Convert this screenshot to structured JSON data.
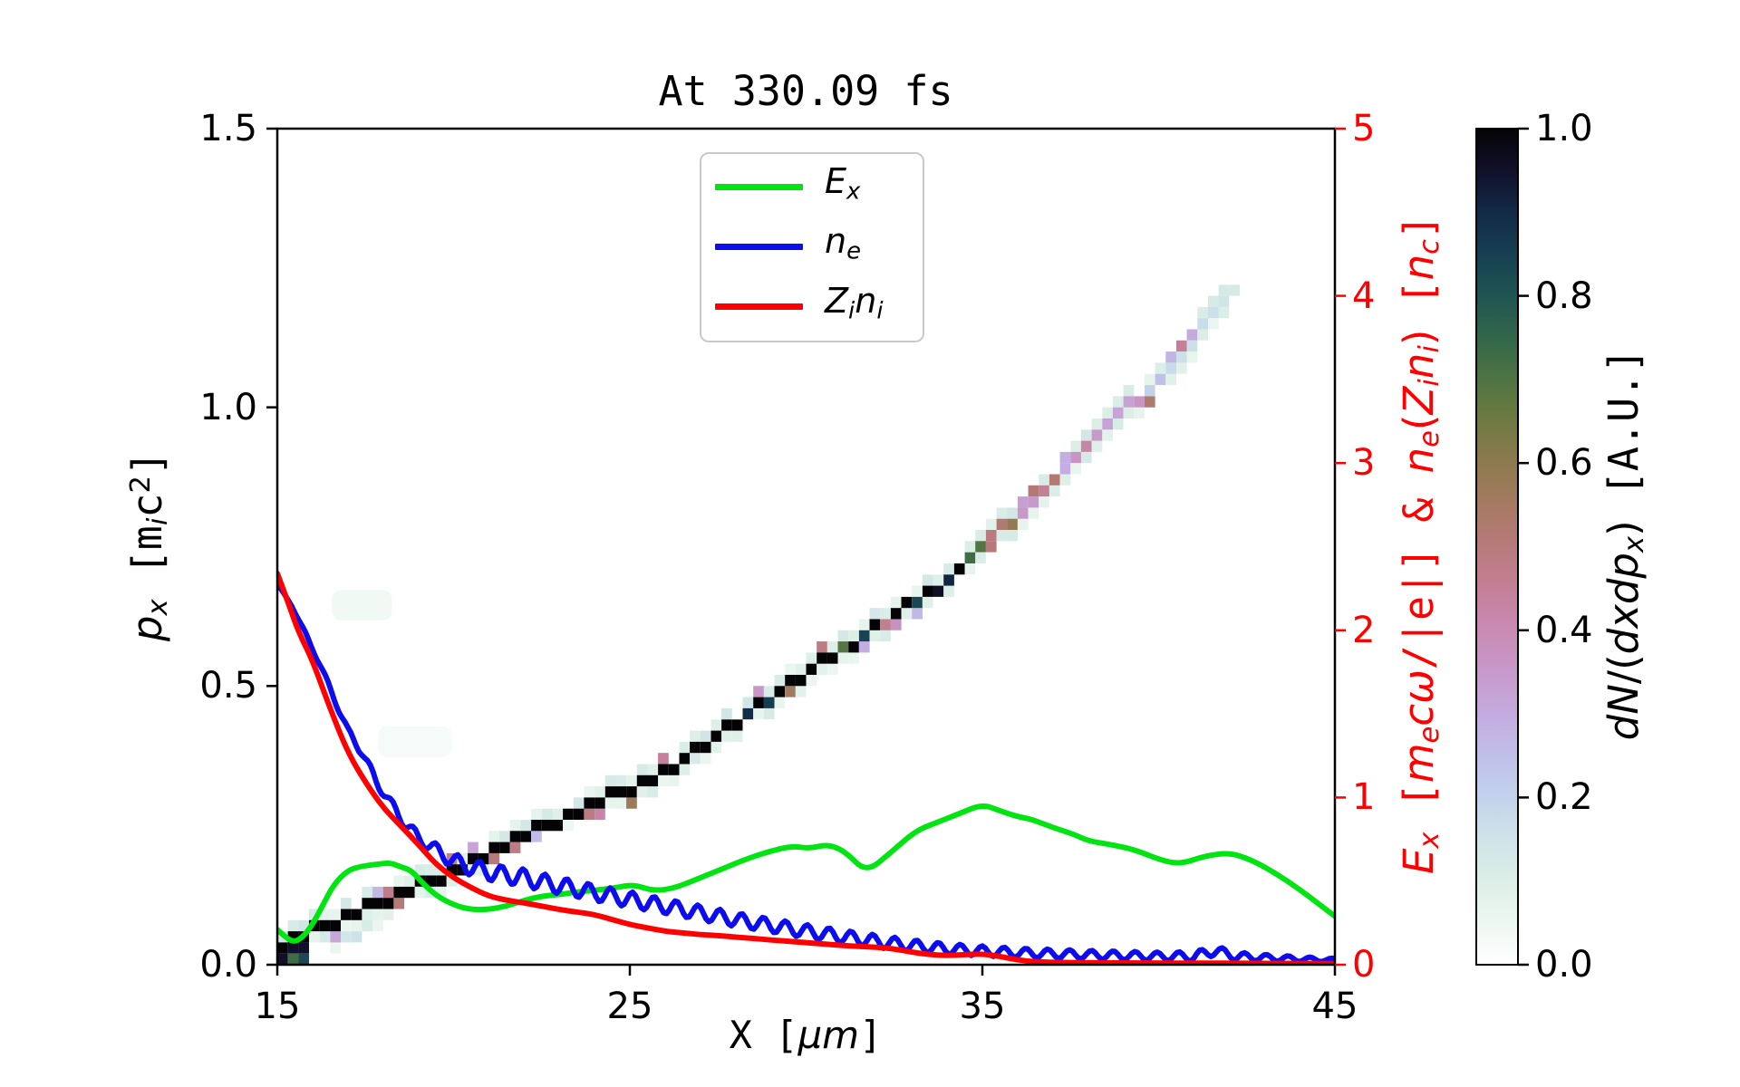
{
  "title": "At 330.09 fs",
  "axes": {
    "x": {
      "label_segments": [
        {
          "t": "X [",
          "s": "m"
        },
        {
          "t": "μm",
          "s": "i"
        },
        {
          "t": "]",
          "s": "m"
        }
      ],
      "tick_labels": [
        "15",
        "25",
        "35",
        "45"
      ],
      "tick_values": [
        15,
        25,
        35,
        45
      ],
      "range": [
        15,
        45
      ]
    },
    "left": {
      "label_segments": [
        {
          "t": "p",
          "s": "i"
        },
        {
          "t": "x",
          "s": "sub"
        },
        {
          "t": " [m",
          "s": "m"
        },
        {
          "t": "i",
          "s": "sub"
        },
        {
          "t": "c",
          "s": "m"
        },
        {
          "t": "2",
          "s": "sup"
        },
        {
          "t": "]",
          "s": "m"
        }
      ],
      "tick_labels": [
        "0.0",
        "0.5",
        "1.0",
        "1.5"
      ],
      "tick_values": [
        0.0,
        0.5,
        1.0,
        1.5
      ],
      "range": [
        0,
        1.5
      ]
    },
    "right": {
      "color": "#ff0000",
      "label_segments": [
        {
          "t": "E",
          "s": "i"
        },
        {
          "t": "x",
          "s": "sub"
        },
        {
          "t": " [",
          "s": "m"
        },
        {
          "t": "m",
          "s": "i"
        },
        {
          "t": "e",
          "s": "sub"
        },
        {
          "t": "c",
          "s": "i"
        },
        {
          "t": "ω",
          "s": "i"
        },
        {
          "t": "/|e|]",
          "s": "m"
        },
        {
          "t": " & ",
          "s": "m"
        },
        {
          "t": "n",
          "s": "i"
        },
        {
          "t": "e",
          "s": "sub"
        },
        {
          "t": "(",
          "s": "r"
        },
        {
          "t": "Z",
          "s": "i"
        },
        {
          "t": "i",
          "s": "sub"
        },
        {
          "t": "n",
          "s": "i"
        },
        {
          "t": "i",
          "s": "sub"
        },
        {
          "t": ")",
          "s": "r"
        },
        {
          "t": " [",
          "s": "m"
        },
        {
          "t": "n",
          "s": "i"
        },
        {
          "t": "c",
          "s": "sub"
        },
        {
          "t": "]",
          "s": "m"
        }
      ],
      "tick_labels": [
        "0",
        "1",
        "2",
        "3",
        "4",
        "5"
      ],
      "tick_values": [
        0,
        1,
        2,
        3,
        4,
        5
      ],
      "range": [
        0,
        5
      ]
    }
  },
  "legend": {
    "items": [
      {
        "name": "Ex",
        "color": "#00e412",
        "segments": [
          {
            "t": "E",
            "s": "i"
          },
          {
            "t": "x",
            "s": "sub"
          }
        ]
      },
      {
        "name": "ne",
        "color": "#0c0cee",
        "segments": [
          {
            "t": "n",
            "s": "i"
          },
          {
            "t": "e",
            "s": "sub"
          }
        ]
      },
      {
        "name": "Zini",
        "color": "#ff0000",
        "segments": [
          {
            "t": "Z",
            "s": "i"
          },
          {
            "t": "i",
            "s": "sub"
          },
          {
            "t": "n",
            "s": "i"
          },
          {
            "t": "i",
            "s": "sub"
          }
        ]
      }
    ]
  },
  "colorbar": {
    "label_segments": [
      {
        "t": "d",
        "s": "i"
      },
      {
        "t": "N",
        "s": "i"
      },
      {
        "t": "/(",
        "s": "r"
      },
      {
        "t": "d",
        "s": "i"
      },
      {
        "t": "x",
        "s": "i"
      },
      {
        "t": "d",
        "s": "i"
      },
      {
        "t": "p",
        "s": "i"
      },
      {
        "t": "x",
        "s": "sub"
      },
      {
        "t": ")",
        "s": "r"
      },
      {
        "t": " [A.U.]",
        "s": "m"
      }
    ],
    "tick_labels": [
      "0.0",
      "0.2",
      "0.4",
      "0.6",
      "0.8",
      "1.0"
    ],
    "tick_values": [
      0.0,
      0.2,
      0.4,
      0.6,
      0.8,
      1.0
    ],
    "range": [
      0,
      1
    ],
    "palette": [
      [
        0.0,
        "#ffffff"
      ],
      [
        0.05,
        "#edf7f1"
      ],
      [
        0.1,
        "#dcefe6"
      ],
      [
        0.15,
        "#cfe4e8"
      ],
      [
        0.2,
        "#c3d2ec"
      ],
      [
        0.25,
        "#c0bfe9"
      ],
      [
        0.3,
        "#c4abdf"
      ],
      [
        0.35,
        "#c899cb"
      ],
      [
        0.4,
        "#c98bb4"
      ],
      [
        0.45,
        "#c48098"
      ],
      [
        0.5,
        "#b87a7c"
      ],
      [
        0.55,
        "#a67a62"
      ],
      [
        0.6,
        "#8d7a4e"
      ],
      [
        0.65,
        "#6f7a42"
      ],
      [
        0.7,
        "#4f7442"
      ],
      [
        0.75,
        "#32664a"
      ],
      [
        0.8,
        "#205552"
      ],
      [
        0.85,
        "#173f52"
      ],
      [
        0.9,
        "#122a46"
      ],
      [
        0.95,
        "#11102a"
      ],
      [
        1.0,
        "#040406"
      ]
    ]
  },
  "chart_data": {
    "type": "composite",
    "title": "At 330.09 fs",
    "xlabel": "X [um]",
    "x_range": [
      15,
      45
    ],
    "y_left": {
      "label": "p_x [m_i c^2]",
      "range": [
        0,
        1.5
      ]
    },
    "y_right": {
      "label": "E_x [m_e c w/|e|] & n_e(Z_i n_i) [n_c]",
      "range": [
        0,
        5
      ]
    },
    "series": [
      {
        "name": "E_x",
        "type": "line",
        "axis": "right",
        "color": "#00e412",
        "points": [
          [
            15,
            0.21
          ],
          [
            15.2,
            0.17
          ],
          [
            15.45,
            0.135
          ],
          [
            15.7,
            0.16
          ],
          [
            16.0,
            0.24
          ],
          [
            16.3,
            0.36
          ],
          [
            16.6,
            0.48
          ],
          [
            17.0,
            0.565
          ],
          [
            17.4,
            0.59
          ],
          [
            17.8,
            0.6
          ],
          [
            18.2,
            0.61
          ],
          [
            18.5,
            0.585
          ],
          [
            18.8,
            0.565
          ],
          [
            19.2,
            0.47
          ],
          [
            19.6,
            0.4
          ],
          [
            20.1,
            0.35
          ],
          [
            20.5,
            0.33
          ],
          [
            21.0,
            0.33
          ],
          [
            21.5,
            0.35
          ],
          [
            22.0,
            0.385
          ],
          [
            22.5,
            0.41
          ],
          [
            23.0,
            0.42
          ],
          [
            23.5,
            0.435
          ],
          [
            24.0,
            0.445
          ],
          [
            24.6,
            0.46
          ],
          [
            25.1,
            0.48
          ],
          [
            25.7,
            0.44
          ],
          [
            26.3,
            0.46
          ],
          [
            27.0,
            0.52
          ],
          [
            27.7,
            0.58
          ],
          [
            28.4,
            0.64
          ],
          [
            29.0,
            0.68
          ],
          [
            29.6,
            0.71
          ],
          [
            30.1,
            0.695
          ],
          [
            30.6,
            0.72
          ],
          [
            31.1,
            0.68
          ],
          [
            31.7,
            0.55
          ],
          [
            32.4,
            0.67
          ],
          [
            33.1,
            0.8
          ],
          [
            33.7,
            0.85
          ],
          [
            34.3,
            0.9
          ],
          [
            35.0,
            0.96
          ],
          [
            35.5,
            0.92
          ],
          [
            36.0,
            0.885
          ],
          [
            36.4,
            0.87
          ],
          [
            37.0,
            0.82
          ],
          [
            37.6,
            0.78
          ],
          [
            38.0,
            0.74
          ],
          [
            38.6,
            0.72
          ],
          [
            39.3,
            0.69
          ],
          [
            40.0,
            0.63
          ],
          [
            40.6,
            0.6
          ],
          [
            41.3,
            0.65
          ],
          [
            42.0,
            0.67
          ],
          [
            42.6,
            0.63
          ],
          [
            43.3,
            0.55
          ],
          [
            44.0,
            0.45
          ],
          [
            44.5,
            0.37
          ],
          [
            45.0,
            0.29
          ]
        ]
      },
      {
        "name": "n_e",
        "type": "line",
        "axis": "right",
        "color": "#0c0cee",
        "osc_period": 0.62,
        "midline": [
          [
            15,
            2.28
          ],
          [
            15.4,
            2.15
          ],
          [
            15.8,
            1.98
          ],
          [
            16.2,
            1.8
          ],
          [
            16.6,
            1.6
          ],
          [
            17.0,
            1.4
          ],
          [
            17.4,
            1.27
          ],
          [
            17.8,
            1.1
          ],
          [
            18.2,
            0.97
          ],
          [
            18.6,
            0.85
          ],
          [
            19.0,
            0.76
          ],
          [
            19.4,
            0.7
          ],
          [
            20.0,
            0.62
          ],
          [
            20.6,
            0.575
          ],
          [
            21.2,
            0.545
          ],
          [
            22.0,
            0.52
          ],
          [
            22.6,
            0.49
          ],
          [
            23.2,
            0.465
          ],
          [
            24.0,
            0.43
          ],
          [
            25.0,
            0.39
          ],
          [
            26.0,
            0.35
          ],
          [
            27.0,
            0.31
          ],
          [
            28.0,
            0.27
          ],
          [
            29.0,
            0.235
          ],
          [
            30.0,
            0.2
          ],
          [
            31.0,
            0.17
          ],
          [
            32.0,
            0.14
          ],
          [
            33.0,
            0.115
          ],
          [
            34.0,
            0.095
          ],
          [
            35.0,
            0.082
          ],
          [
            36.0,
            0.072
          ],
          [
            37.0,
            0.065
          ],
          [
            38.0,
            0.06
          ],
          [
            39.0,
            0.055
          ],
          [
            40.0,
            0.05
          ],
          [
            41.0,
            0.05
          ],
          [
            41.6,
            0.085
          ],
          [
            42.2,
            0.05
          ],
          [
            43.0,
            0.042
          ],
          [
            44.0,
            0.034
          ],
          [
            45.0,
            0.028
          ]
        ],
        "osc_amp": [
          [
            15,
            0.0
          ],
          [
            16.2,
            0.013
          ],
          [
            17.5,
            0.025
          ],
          [
            19.0,
            0.035
          ],
          [
            20.5,
            0.05
          ],
          [
            22.0,
            0.052
          ],
          [
            24.0,
            0.048
          ],
          [
            26.0,
            0.045
          ],
          [
            28.0,
            0.042
          ],
          [
            30.0,
            0.04
          ],
          [
            32.0,
            0.038
          ],
          [
            34.0,
            0.032
          ],
          [
            36.0,
            0.028
          ],
          [
            38.0,
            0.026
          ],
          [
            40.0,
            0.025
          ],
          [
            41.5,
            0.03
          ],
          [
            43.0,
            0.02
          ],
          [
            44.0,
            0.015
          ],
          [
            45.0,
            0.01
          ]
        ]
      },
      {
        "name": "Z_i n_i",
        "type": "line",
        "axis": "right",
        "color": "#ff0000",
        "points": [
          [
            15,
            2.34
          ],
          [
            15.3,
            2.17
          ],
          [
            15.6,
            1.99
          ],
          [
            16.0,
            1.82
          ],
          [
            16.5,
            1.53
          ],
          [
            17.0,
            1.27
          ],
          [
            17.5,
            1.09
          ],
          [
            18.0,
            0.94
          ],
          [
            18.5,
            0.83
          ],
          [
            19.0,
            0.72
          ],
          [
            19.5,
            0.6
          ],
          [
            20.0,
            0.52
          ],
          [
            20.5,
            0.46
          ],
          [
            21.0,
            0.41
          ],
          [
            21.5,
            0.385
          ],
          [
            22.0,
            0.37
          ],
          [
            22.5,
            0.35
          ],
          [
            23.0,
            0.33
          ],
          [
            23.5,
            0.315
          ],
          [
            24.0,
            0.3
          ],
          [
            24.5,
            0.27
          ],
          [
            25.0,
            0.24
          ],
          [
            25.5,
            0.22
          ],
          [
            26.0,
            0.2
          ],
          [
            26.5,
            0.19
          ],
          [
            27.0,
            0.18
          ],
          [
            27.5,
            0.175
          ],
          [
            28.0,
            0.165
          ],
          [
            28.5,
            0.158
          ],
          [
            29.0,
            0.148
          ],
          [
            29.5,
            0.14
          ],
          [
            30.0,
            0.132
          ],
          [
            30.5,
            0.124
          ],
          [
            31.0,
            0.115
          ],
          [
            31.5,
            0.11
          ],
          [
            32.0,
            0.105
          ],
          [
            32.5,
            0.095
          ],
          [
            33.0,
            0.075
          ],
          [
            33.5,
            0.06
          ],
          [
            34.0,
            0.055
          ],
          [
            34.5,
            0.06
          ],
          [
            35.0,
            0.065
          ],
          [
            35.5,
            0.05
          ],
          [
            36.0,
            0.028
          ],
          [
            36.5,
            0.018
          ],
          [
            37.0,
            0.014
          ],
          [
            38.0,
            0.012
          ],
          [
            39.0,
            0.011
          ],
          [
            40.0,
            0.01
          ],
          [
            41.0,
            0.009
          ],
          [
            42.0,
            0.009
          ],
          [
            43.0,
            0.008
          ],
          [
            44.0,
            0.008
          ],
          [
            45.0,
            0.007
          ]
        ]
      },
      {
        "name": "dN/(dxdp_x) band",
        "type": "heatmap-band",
        "axis": "left",
        "bin_x": 0.3,
        "bin_p": 0.02,
        "x_start": 15,
        "x_end": 42.4,
        "path": [
          [
            15,
            0.02
          ],
          [
            17,
            0.08
          ],
          [
            19,
            0.13
          ],
          [
            21,
            0.19
          ],
          [
            23.6,
            0.27
          ],
          [
            26.2,
            0.34
          ],
          [
            29.0,
            0.47
          ],
          [
            31.5,
            0.575
          ],
          [
            33.9,
            0.675
          ],
          [
            36.4,
            0.82
          ],
          [
            38.8,
            0.97
          ],
          [
            40.6,
            1.08
          ],
          [
            42.3,
            1.22
          ]
        ],
        "density": [
          [
            15,
            1.0
          ],
          [
            33.5,
            1.0
          ],
          [
            34.4,
            0.85
          ],
          [
            35.5,
            0.52
          ],
          [
            37.0,
            0.42
          ],
          [
            38.5,
            0.34
          ],
          [
            40.0,
            0.26
          ],
          [
            41.0,
            0.19
          ],
          [
            42.0,
            0.12
          ],
          [
            42.4,
            0.07
          ]
        ]
      }
    ],
    "smudges": [
      {
        "x": 17.4,
        "p": 0.645,
        "w": 1.7,
        "h": 0.055,
        "opacity": 0.55
      },
      {
        "x": 18.9,
        "p": 0.4,
        "w": 2.1,
        "h": 0.055,
        "opacity": 0.4
      }
    ]
  }
}
